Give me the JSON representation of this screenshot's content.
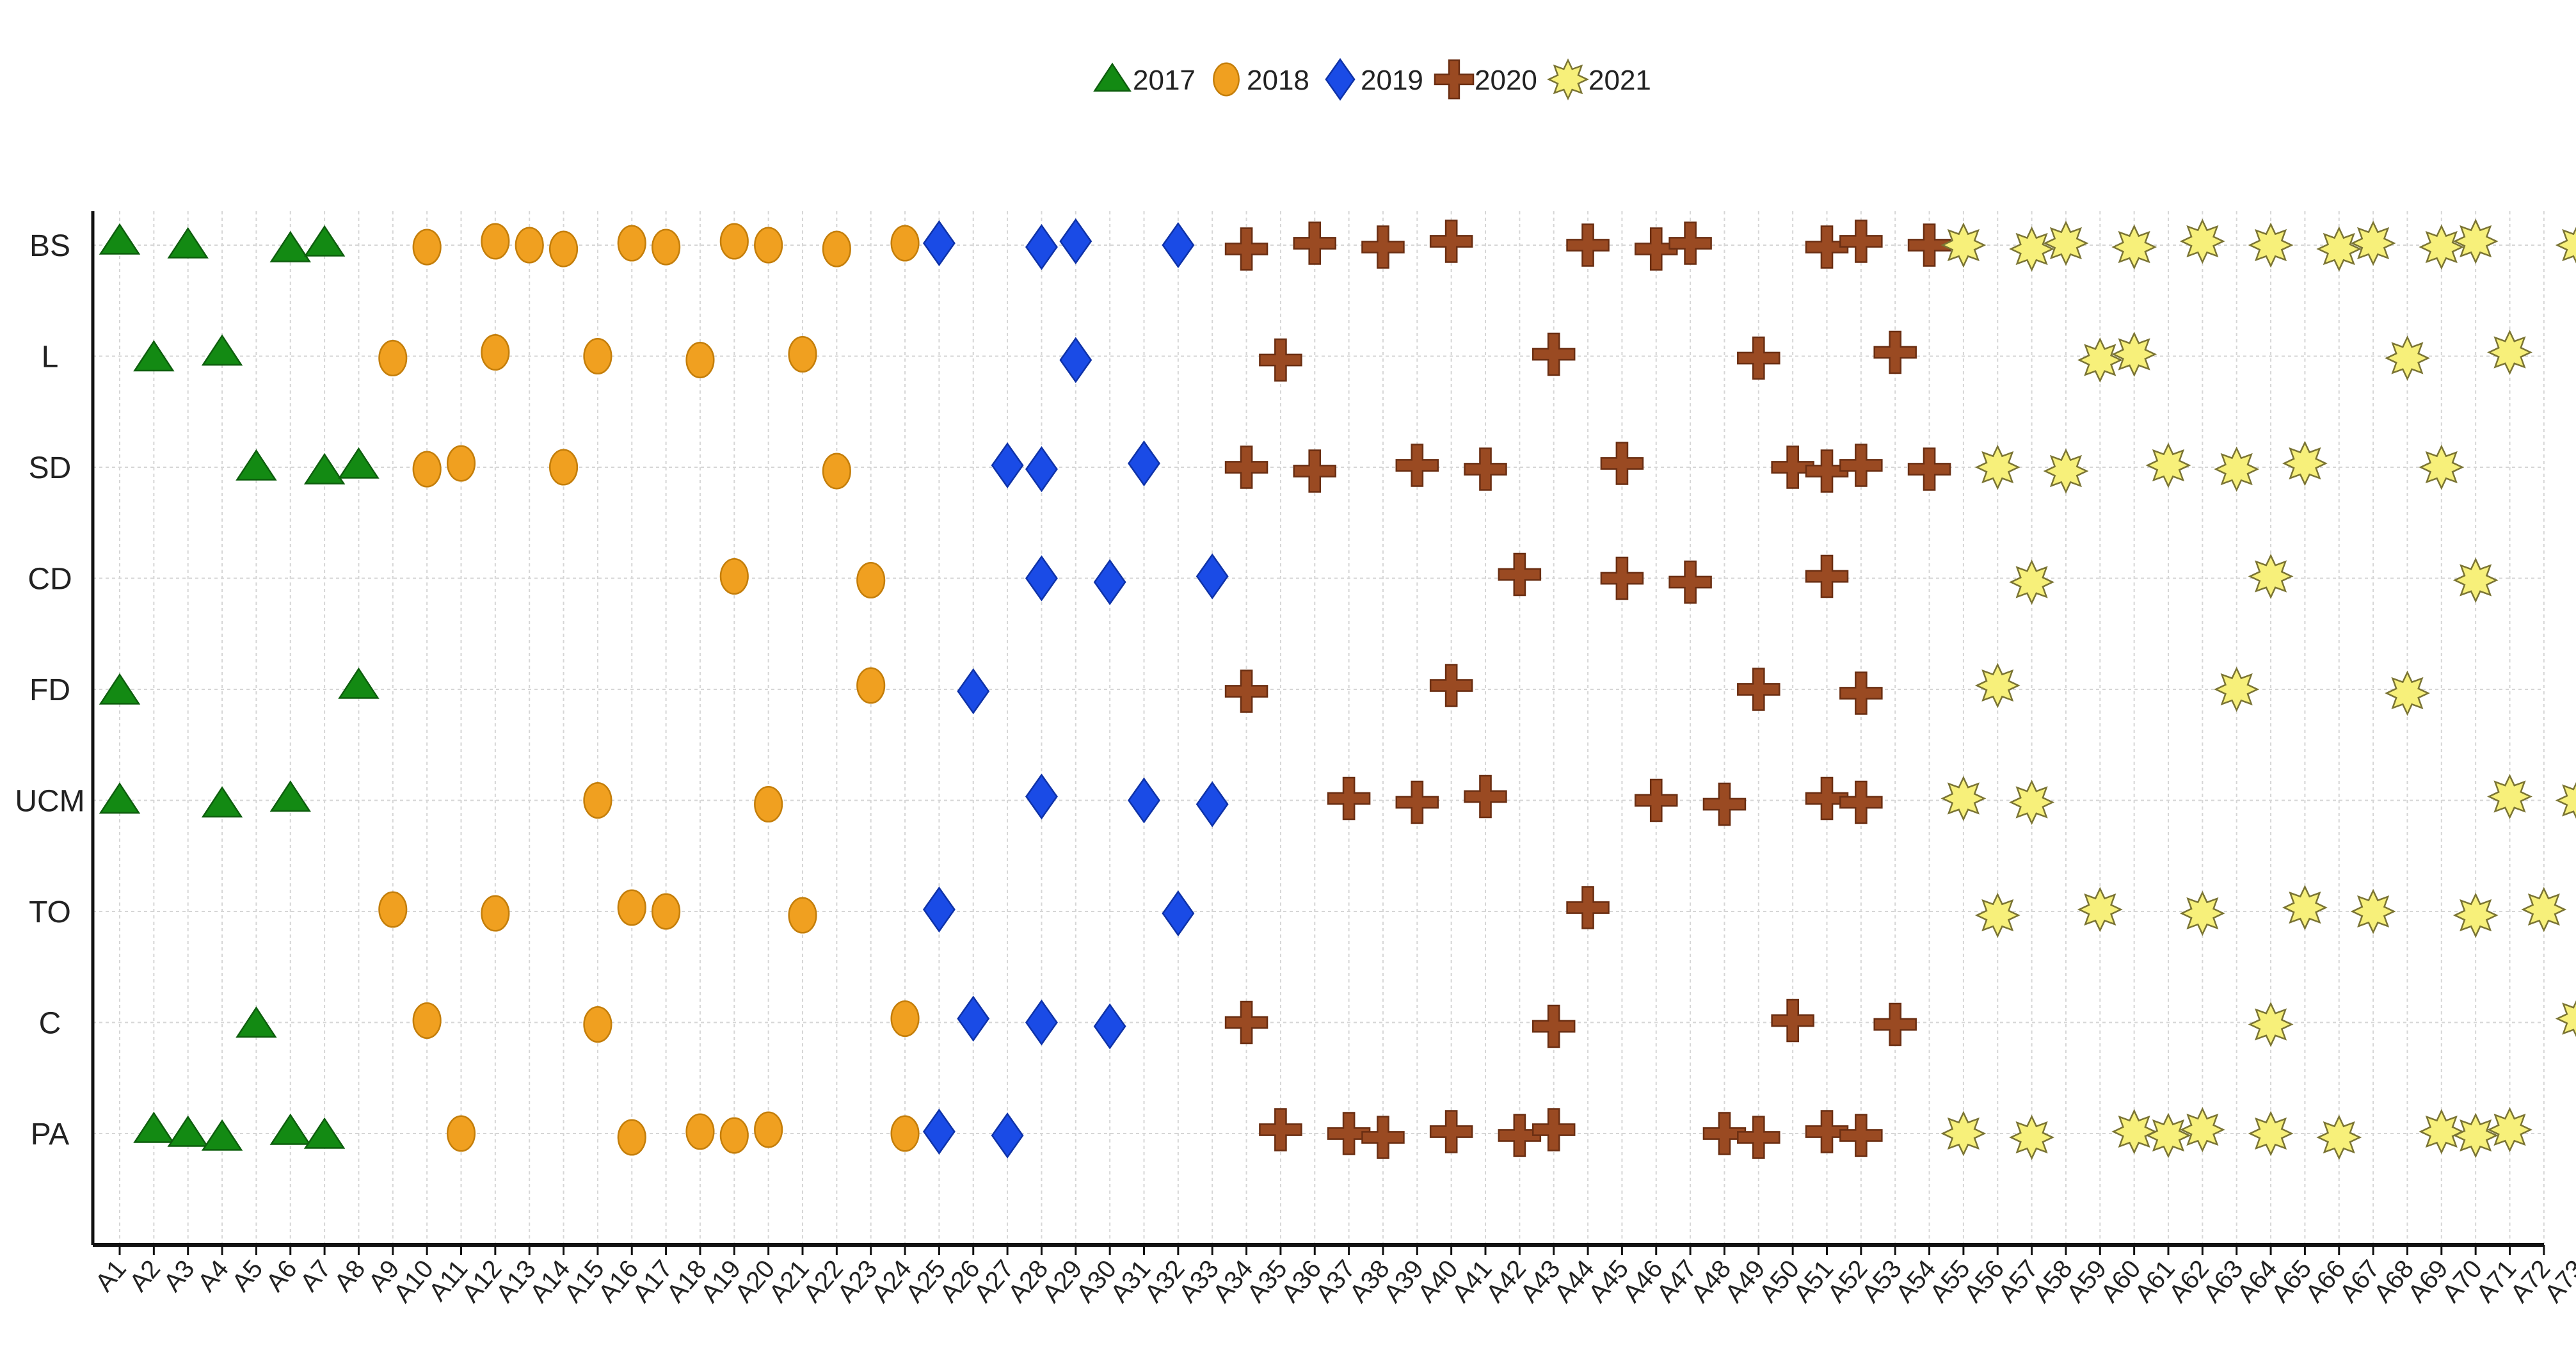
{
  "chart_data": {
    "type": "scatter",
    "title": "",
    "xlabel": "",
    "ylabel": "",
    "grid": true,
    "legend_position": "top-center",
    "categories": [
      "A1",
      "A2",
      "A3",
      "A4",
      "A5",
      "A6",
      "A7",
      "A8",
      "A9",
      "A10",
      "A11",
      "A12",
      "A13",
      "A14",
      "A15",
      "A16",
      "A17",
      "A18",
      "A19",
      "A20",
      "A21",
      "A22",
      "A23",
      "A24",
      "A25",
      "A26",
      "A27",
      "A28",
      "A29",
      "A30",
      "A31",
      "A32",
      "A33",
      "A34",
      "A35",
      "A36",
      "A37",
      "A38",
      "A39",
      "A40",
      "A41",
      "A42",
      "A43",
      "A44",
      "A45",
      "A46",
      "A47",
      "A48",
      "A49",
      "A50",
      "A51",
      "A52",
      "A53",
      "A54",
      "A55",
      "A56",
      "A57",
      "A58",
      "A59",
      "A60",
      "A61",
      "A62",
      "A63",
      "A64",
      "A65",
      "A66",
      "A67",
      "A68",
      "A69",
      "A70",
      "A71",
      "A72",
      "A73"
    ],
    "rows": [
      "BS",
      "L",
      "SD",
      "CD",
      "FD",
      "UCM",
      "TO",
      "C",
      "PA"
    ],
    "series": [
      {
        "name": "2017",
        "marker": "triangle",
        "color": "#138a13",
        "points": [
          [
            "A1",
            "BS"
          ],
          [
            "A3",
            "BS"
          ],
          [
            "A6",
            "BS"
          ],
          [
            "A7",
            "BS"
          ],
          [
            "A2",
            "L"
          ],
          [
            "A4",
            "L"
          ],
          [
            "A5",
            "SD"
          ],
          [
            "A7",
            "SD"
          ],
          [
            "A8",
            "SD"
          ],
          [
            "A1",
            "FD"
          ],
          [
            "A8",
            "FD"
          ],
          [
            "A1",
            "UCM"
          ],
          [
            "A4",
            "UCM"
          ],
          [
            "A6",
            "UCM"
          ],
          [
            "A5",
            "C"
          ],
          [
            "A2",
            "PA"
          ],
          [
            "A3",
            "PA"
          ],
          [
            "A4",
            "PA"
          ],
          [
            "A6",
            "PA"
          ],
          [
            "A7",
            "PA"
          ]
        ]
      },
      {
        "name": "2018",
        "marker": "circle",
        "color": "#f0a020",
        "points": [
          [
            "A10",
            "BS"
          ],
          [
            "A12",
            "BS"
          ],
          [
            "A13",
            "BS"
          ],
          [
            "A14",
            "BS"
          ],
          [
            "A16",
            "BS"
          ],
          [
            "A17",
            "BS"
          ],
          [
            "A19",
            "BS"
          ],
          [
            "A20",
            "BS"
          ],
          [
            "A22",
            "BS"
          ],
          [
            "A24",
            "BS"
          ],
          [
            "A9",
            "L"
          ],
          [
            "A12",
            "L"
          ],
          [
            "A15",
            "L"
          ],
          [
            "A18",
            "L"
          ],
          [
            "A21",
            "L"
          ],
          [
            "A10",
            "SD"
          ],
          [
            "A11",
            "SD"
          ],
          [
            "A14",
            "SD"
          ],
          [
            "A22",
            "SD"
          ],
          [
            "A19",
            "CD"
          ],
          [
            "A23",
            "CD"
          ],
          [
            "A23",
            "FD"
          ],
          [
            "A15",
            "UCM"
          ],
          [
            "A20",
            "UCM"
          ],
          [
            "A9",
            "TO"
          ],
          [
            "A12",
            "TO"
          ],
          [
            "A16",
            "TO"
          ],
          [
            "A17",
            "TO"
          ],
          [
            "A21",
            "TO"
          ],
          [
            "A10",
            "C"
          ],
          [
            "A15",
            "C"
          ],
          [
            "A24",
            "C"
          ],
          [
            "A11",
            "PA"
          ],
          [
            "A16",
            "PA"
          ],
          [
            "A18",
            "PA"
          ],
          [
            "A19",
            "PA"
          ],
          [
            "A20",
            "PA"
          ],
          [
            "A24",
            "PA"
          ]
        ]
      },
      {
        "name": "2019",
        "marker": "diamond",
        "color": "#1a4be6",
        "points": [
          [
            "A25",
            "BS"
          ],
          [
            "A28",
            "BS"
          ],
          [
            "A29",
            "BS"
          ],
          [
            "A32",
            "BS"
          ],
          [
            "A29",
            "L"
          ],
          [
            "A27",
            "SD"
          ],
          [
            "A28",
            "SD"
          ],
          [
            "A31",
            "SD"
          ],
          [
            "A28",
            "CD"
          ],
          [
            "A30",
            "CD"
          ],
          [
            "A33",
            "CD"
          ],
          [
            "A26",
            "FD"
          ],
          [
            "A28",
            "UCM"
          ],
          [
            "A31",
            "UCM"
          ],
          [
            "A33",
            "UCM"
          ],
          [
            "A25",
            "TO"
          ],
          [
            "A32",
            "TO"
          ],
          [
            "A26",
            "C"
          ],
          [
            "A28",
            "C"
          ],
          [
            "A30",
            "C"
          ],
          [
            "A25",
            "PA"
          ],
          [
            "A27",
            "PA"
          ]
        ]
      },
      {
        "name": "2020",
        "marker": "plus",
        "color": "#9a4a22",
        "points": [
          [
            "A34",
            "BS"
          ],
          [
            "A36",
            "BS"
          ],
          [
            "A38",
            "BS"
          ],
          [
            "A40",
            "BS"
          ],
          [
            "A44",
            "BS"
          ],
          [
            "A46",
            "BS"
          ],
          [
            "A47",
            "BS"
          ],
          [
            "A51",
            "BS"
          ],
          [
            "A52",
            "BS"
          ],
          [
            "A54",
            "BS"
          ],
          [
            "A35",
            "L"
          ],
          [
            "A43",
            "L"
          ],
          [
            "A49",
            "L"
          ],
          [
            "A53",
            "L"
          ],
          [
            "A34",
            "SD"
          ],
          [
            "A36",
            "SD"
          ],
          [
            "A39",
            "SD"
          ],
          [
            "A41",
            "SD"
          ],
          [
            "A45",
            "SD"
          ],
          [
            "A50",
            "SD"
          ],
          [
            "A51",
            "SD"
          ],
          [
            "A52",
            "SD"
          ],
          [
            "A54",
            "SD"
          ],
          [
            "A42",
            "CD"
          ],
          [
            "A45",
            "CD"
          ],
          [
            "A47",
            "CD"
          ],
          [
            "A51",
            "CD"
          ],
          [
            "A34",
            "FD"
          ],
          [
            "A40",
            "FD"
          ],
          [
            "A49",
            "FD"
          ],
          [
            "A52",
            "FD"
          ],
          [
            "A37",
            "UCM"
          ],
          [
            "A39",
            "UCM"
          ],
          [
            "A41",
            "UCM"
          ],
          [
            "A46",
            "UCM"
          ],
          [
            "A48",
            "UCM"
          ],
          [
            "A51",
            "UCM"
          ],
          [
            "A52",
            "UCM"
          ],
          [
            "A44",
            "TO"
          ],
          [
            "A34",
            "C"
          ],
          [
            "A43",
            "C"
          ],
          [
            "A50",
            "C"
          ],
          [
            "A53",
            "C"
          ],
          [
            "A35",
            "PA"
          ],
          [
            "A37",
            "PA"
          ],
          [
            "A38",
            "PA"
          ],
          [
            "A40",
            "PA"
          ],
          [
            "A42",
            "PA"
          ],
          [
            "A43",
            "PA"
          ],
          [
            "A48",
            "PA"
          ],
          [
            "A49",
            "PA"
          ],
          [
            "A51",
            "PA"
          ],
          [
            "A52",
            "PA"
          ]
        ]
      },
      {
        "name": "2021",
        "marker": "star",
        "color": "#f7f07a",
        "points": [
          [
            "A55",
            "BS"
          ],
          [
            "A57",
            "BS"
          ],
          [
            "A58",
            "BS"
          ],
          [
            "A60",
            "BS"
          ],
          [
            "A62",
            "BS"
          ],
          [
            "A64",
            "BS"
          ],
          [
            "A66",
            "BS"
          ],
          [
            "A67",
            "BS"
          ],
          [
            "A69",
            "BS"
          ],
          [
            "A70",
            "BS"
          ],
          [
            "A73",
            "BS"
          ],
          [
            "A59",
            "L"
          ],
          [
            "A60",
            "L"
          ],
          [
            "A68",
            "L"
          ],
          [
            "A71",
            "L"
          ],
          [
            "A56",
            "SD"
          ],
          [
            "A58",
            "SD"
          ],
          [
            "A61",
            "SD"
          ],
          [
            "A63",
            "SD"
          ],
          [
            "A65",
            "SD"
          ],
          [
            "A69",
            "SD"
          ],
          [
            "A57",
            "CD"
          ],
          [
            "A64",
            "CD"
          ],
          [
            "A70",
            "CD"
          ],
          [
            "A56",
            "FD"
          ],
          [
            "A63",
            "FD"
          ],
          [
            "A68",
            "FD"
          ],
          [
            "A55",
            "UCM"
          ],
          [
            "A57",
            "UCM"
          ],
          [
            "A71",
            "UCM"
          ],
          [
            "A73",
            "UCM"
          ],
          [
            "A56",
            "TO"
          ],
          [
            "A59",
            "TO"
          ],
          [
            "A62",
            "TO"
          ],
          [
            "A65",
            "TO"
          ],
          [
            "A67",
            "TO"
          ],
          [
            "A70",
            "TO"
          ],
          [
            "A72",
            "TO"
          ],
          [
            "A64",
            "C"
          ],
          [
            "A73",
            "C"
          ],
          [
            "A55",
            "PA"
          ],
          [
            "A57",
            "PA"
          ],
          [
            "A60",
            "PA"
          ],
          [
            "A61",
            "PA"
          ],
          [
            "A62",
            "PA"
          ],
          [
            "A64",
            "PA"
          ],
          [
            "A66",
            "PA"
          ],
          [
            "A69",
            "PA"
          ],
          [
            "A70",
            "PA"
          ],
          [
            "A71",
            "PA"
          ]
        ]
      }
    ]
  }
}
